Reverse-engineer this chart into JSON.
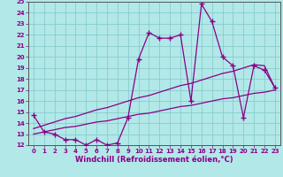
{
  "title": "",
  "xlabel": "Windchill (Refroidissement éolien,°C)",
  "ylabel": "",
  "bg_color": "#b2e8e8",
  "line_color": "#880088",
  "grid_color": "#88cccc",
  "xlim": [
    -0.5,
    23.5
  ],
  "ylim": [
    12,
    25
  ],
  "xticks": [
    0,
    1,
    2,
    3,
    4,
    5,
    6,
    7,
    8,
    9,
    10,
    11,
    12,
    13,
    14,
    15,
    16,
    17,
    18,
    19,
    20,
    21,
    22,
    23
  ],
  "yticks": [
    12,
    13,
    14,
    15,
    16,
    17,
    18,
    19,
    20,
    21,
    22,
    23,
    24,
    25
  ],
  "x": [
    0,
    1,
    2,
    3,
    4,
    5,
    6,
    7,
    8,
    9,
    10,
    11,
    12,
    13,
    14,
    15,
    16,
    17,
    18,
    19,
    20,
    21,
    22,
    23
  ],
  "y_main": [
    14.7,
    13.2,
    13.0,
    12.5,
    12.5,
    12.0,
    12.5,
    12.0,
    12.2,
    14.5,
    19.8,
    22.2,
    21.7,
    21.7,
    22.0,
    16.0,
    24.8,
    23.2,
    20.0,
    19.2,
    14.5,
    19.2,
    18.8,
    17.2
  ],
  "y_line2": [
    13.5,
    13.8,
    14.1,
    14.4,
    14.6,
    14.9,
    15.2,
    15.4,
    15.7,
    16.0,
    16.3,
    16.5,
    16.8,
    17.1,
    17.4,
    17.6,
    17.9,
    18.2,
    18.5,
    18.7,
    19.0,
    19.3,
    19.2,
    17.2
  ],
  "y_line3": [
    13.0,
    13.2,
    13.4,
    13.6,
    13.7,
    13.9,
    14.1,
    14.2,
    14.4,
    14.6,
    14.8,
    14.9,
    15.1,
    15.3,
    15.5,
    15.6,
    15.8,
    16.0,
    16.2,
    16.3,
    16.5,
    16.7,
    16.8,
    17.0
  ]
}
